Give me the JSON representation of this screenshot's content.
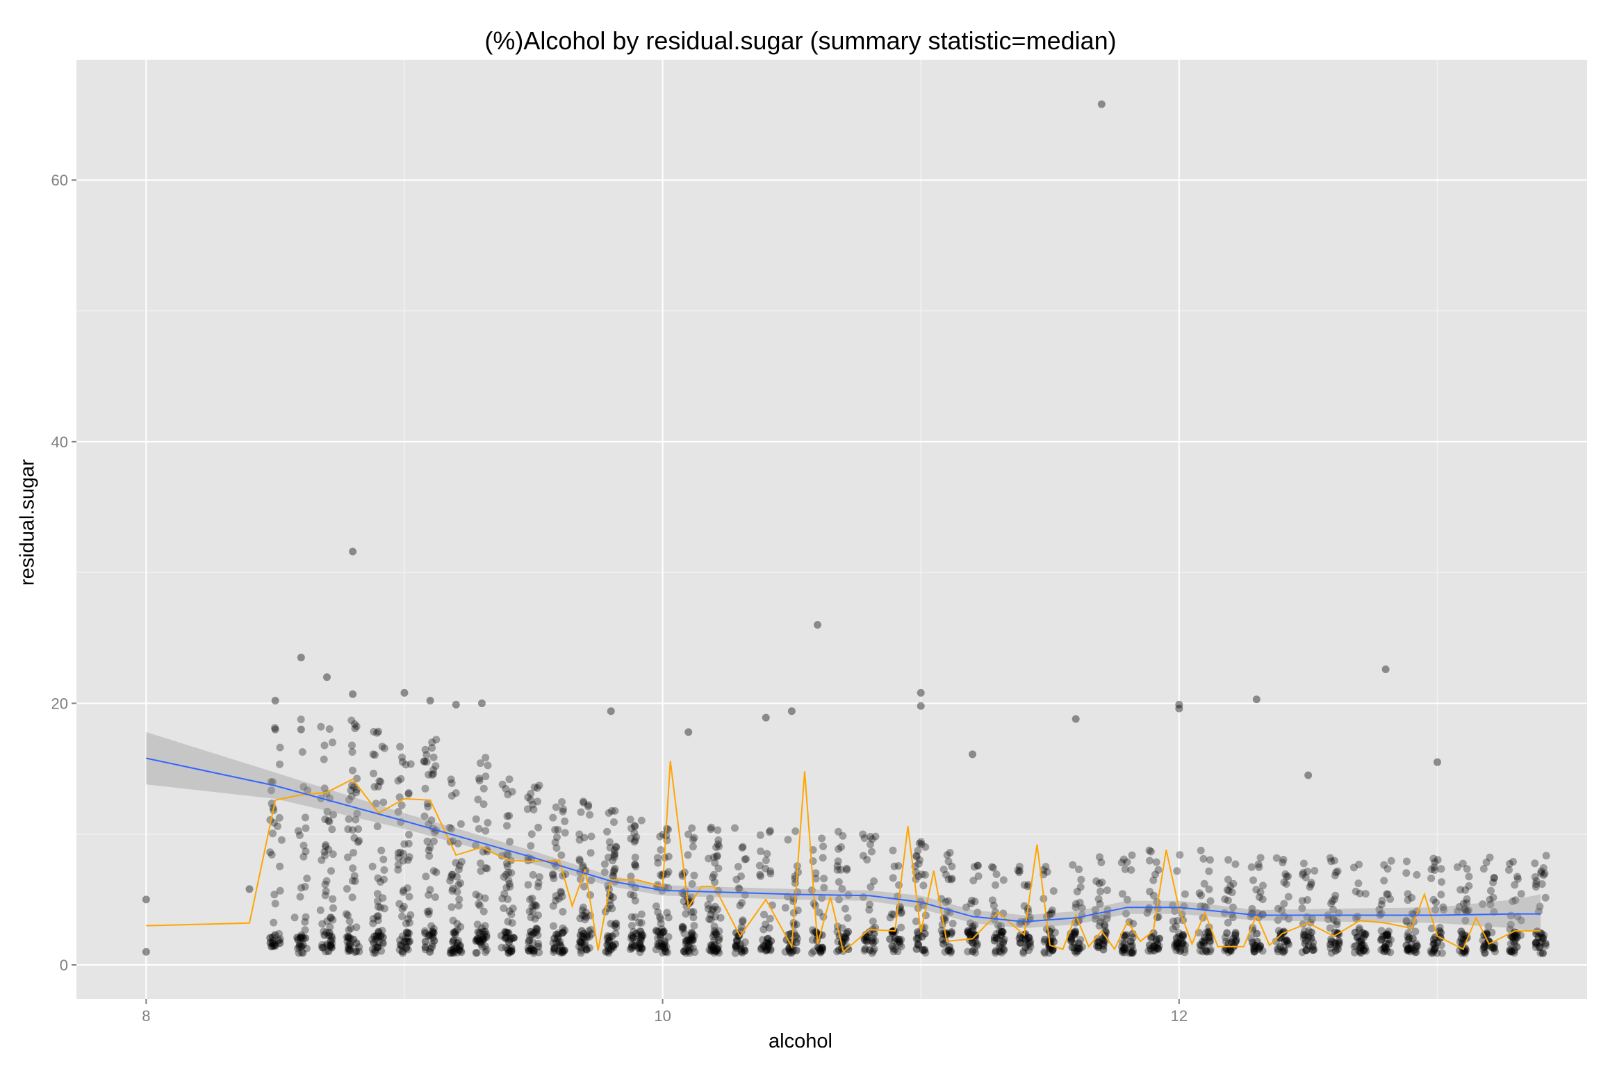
{
  "chart_data": {
    "type": "scatter",
    "title": "(%)Alcohol by residual.sugar (summary statistic=median)",
    "xlabel": "alcohol",
    "ylabel": "residual.sugar",
    "xlim": [
      7.73,
      13.58
    ],
    "ylim": [
      -2.6,
      69.2
    ],
    "xticks": [
      8,
      10,
      12
    ],
    "yticks": [
      0,
      20,
      40,
      60
    ],
    "grid": true,
    "colors": {
      "panel": "#e5e5e5",
      "grid_major": "#ffffff",
      "grid_minor": "#f2f2f2",
      "points": "#000000",
      "median_line": "#ffa500",
      "smooth_line": "#3366ff",
      "confidence_band": "#999999"
    },
    "series": [
      {
        "type": "points",
        "alcohol_levels": [
          8.0,
          8.4,
          8.5,
          8.6,
          8.7,
          8.8,
          8.9,
          9.0,
          9.1,
          9.2,
          9.3,
          9.4,
          9.5,
          9.6,
          9.7,
          9.8,
          9.9,
          10.0,
          10.1,
          10.2,
          10.3,
          10.4,
          10.5,
          10.6,
          10.7,
          10.8,
          10.9,
          11.0,
          11.1,
          11.2,
          11.3,
          11.4,
          11.5,
          11.6,
          11.7,
          11.8,
          11.9,
          12.0,
          12.1,
          12.2,
          12.3,
          12.4,
          12.5,
          12.6,
          12.7,
          12.8,
          12.9,
          13.0,
          13.1,
          13.2,
          13.3,
          13.4
        ],
        "outliers": [
          {
            "x": 8.0,
            "y": 5.0
          },
          {
            "x": 8.0,
            "y": 1.0
          },
          {
            "x": 8.4,
            "y": 5.8
          },
          {
            "x": 8.5,
            "y": 20.2
          },
          {
            "x": 8.5,
            "y": 18.0
          },
          {
            "x": 8.5,
            "y": 1.5
          },
          {
            "x": 8.6,
            "y": 23.5
          },
          {
            "x": 8.6,
            "y": 18.0
          },
          {
            "x": 8.7,
            "y": 22.0
          },
          {
            "x": 8.8,
            "y": 31.6
          },
          {
            "x": 8.8,
            "y": 20.7
          },
          {
            "x": 9.0,
            "y": 20.8
          },
          {
            "x": 9.1,
            "y": 20.2
          },
          {
            "x": 9.2,
            "y": 19.9
          },
          {
            "x": 9.3,
            "y": 20.0
          },
          {
            "x": 9.8,
            "y": 19.4
          },
          {
            "x": 10.1,
            "y": 17.8
          },
          {
            "x": 10.4,
            "y": 18.9
          },
          {
            "x": 10.5,
            "y": 19.4
          },
          {
            "x": 10.6,
            "y": 26.0
          },
          {
            "x": 11.0,
            "y": 20.8
          },
          {
            "x": 11.0,
            "y": 19.8
          },
          {
            "x": 11.2,
            "y": 16.1
          },
          {
            "x": 11.6,
            "y": 18.8
          },
          {
            "x": 11.7,
            "y": 65.8
          },
          {
            "x": 12.0,
            "y": 19.9
          },
          {
            "x": 12.0,
            "y": 19.6
          },
          {
            "x": 12.3,
            "y": 20.3
          },
          {
            "x": 12.5,
            "y": 14.5
          },
          {
            "x": 12.8,
            "y": 22.6
          },
          {
            "x": 13.0,
            "y": 15.5
          }
        ]
      },
      {
        "type": "line",
        "stat": "median",
        "x": [
          8.0,
          8.4,
          8.5,
          8.6,
          8.7,
          8.8,
          8.9,
          9.0,
          9.1,
          9.2,
          9.3,
          9.4,
          9.5,
          9.6,
          9.65,
          9.7,
          9.75,
          9.8,
          9.9,
          10.0,
          10.03,
          10.1,
          10.15,
          10.2,
          10.3,
          10.4,
          10.5,
          10.55,
          10.6,
          10.65,
          10.7,
          10.8,
          10.9,
          10.95,
          11.0,
          11.05,
          11.1,
          11.2,
          11.3,
          11.4,
          11.45,
          11.5,
          11.55,
          11.6,
          11.65,
          11.7,
          11.75,
          11.8,
          11.85,
          11.9,
          11.95,
          12.0,
          12.05,
          12.1,
          12.15,
          12.2,
          12.25,
          12.3,
          12.35,
          12.4,
          12.5,
          12.6,
          12.7,
          12.8,
          12.9,
          12.95,
          13.0,
          13.1,
          13.15,
          13.2,
          13.3,
          13.4
        ],
        "y": [
          3.0,
          3.2,
          12.6,
          13.0,
          13.2,
          14.2,
          11.6,
          12.7,
          12.6,
          8.4,
          9.0,
          8.0,
          7.9,
          8.0,
          4.5,
          7.3,
          1.1,
          6.5,
          6.5,
          6.0,
          15.6,
          4.4,
          6.0,
          6.0,
          2.2,
          5.0,
          1.4,
          14.8,
          1.6,
          5.2,
          1.0,
          2.7,
          2.6,
          10.6,
          2.5,
          7.2,
          1.8,
          2.0,
          4.0,
          2.3,
          9.2,
          1.5,
          1.2,
          3.8,
          1.4,
          2.6,
          1.2,
          3.3,
          1.8,
          2.6,
          8.8,
          4.3,
          1.6,
          4.0,
          1.4,
          1.4,
          1.4,
          3.8,
          1.5,
          2.4,
          3.2,
          2.2,
          3.4,
          3.2,
          2.8,
          5.4,
          2.2,
          1.2,
          3.6,
          1.6,
          2.6,
          2.6
        ]
      },
      {
        "type": "smooth",
        "x": [
          8.0,
          8.5,
          9.0,
          9.5,
          9.8,
          10.0,
          10.5,
          10.8,
          11.0,
          11.2,
          11.4,
          11.6,
          11.8,
          12.0,
          12.3,
          12.6,
          13.0,
          13.3,
          13.4
        ],
        "y": [
          15.8,
          13.7,
          11.0,
          8.2,
          6.4,
          5.7,
          5.4,
          5.3,
          4.8,
          3.7,
          3.3,
          3.6,
          4.4,
          4.4,
          3.8,
          3.8,
          3.8,
          3.9,
          3.9
        ],
        "band_lower": [
          13.8,
          12.7,
          10.4,
          7.7,
          6.0,
          5.3,
          5.0,
          4.9,
          4.3,
          3.2,
          2.8,
          3.1,
          3.9,
          3.9,
          3.4,
          3.3,
          3.2,
          2.8,
          2.4
        ],
        "band_upper": [
          17.8,
          14.7,
          11.6,
          8.7,
          6.8,
          6.1,
          5.8,
          5.7,
          5.3,
          4.2,
          3.8,
          4.1,
          4.9,
          4.9,
          4.2,
          4.3,
          4.4,
          5.0,
          5.4
        ]
      }
    ]
  }
}
